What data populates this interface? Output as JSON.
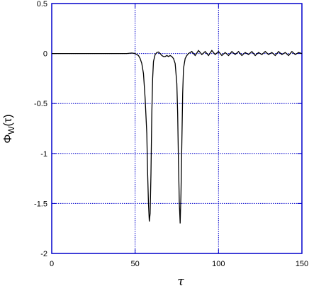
{
  "chart_data": {
    "type": "line",
    "xlabel": "τ",
    "ylabel": {
      "main": "Φ",
      "sub": "W",
      "rest": "(τ)"
    },
    "xlim": [
      0,
      150
    ],
    "ylim": [
      -2,
      0.5
    ],
    "xticks": [
      0,
      50,
      100,
      150
    ],
    "yticks": [
      0.5,
      0,
      -0.5,
      -1,
      -1.5,
      -2
    ],
    "grid": true,
    "series": [
      {
        "color": "#000000",
        "x": [
          0,
          10,
          20,
          30,
          40,
          45,
          48,
          50,
          51,
          52,
          53,
          54,
          55,
          56,
          57,
          57.5,
          58,
          58.5,
          59,
          59.5,
          60,
          60.5,
          61,
          62,
          63,
          64,
          65,
          66,
          67,
          68,
          69,
          70,
          71,
          72,
          73,
          74,
          75,
          75.5,
          76,
          76.5,
          77,
          77.5,
          78,
          78.5,
          79,
          80,
          81,
          82,
          84,
          86,
          88,
          90,
          92,
          94,
          96,
          98,
          100,
          102,
          104,
          106,
          108,
          110,
          112,
          114,
          116,
          118,
          120,
          122,
          124,
          126,
          128,
          130,
          132,
          134,
          136,
          138,
          140,
          142,
          144,
          146,
          148,
          150
        ],
        "values": [
          0,
          0,
          0,
          0,
          0,
          0,
          0.005,
          0,
          -0.01,
          -0.02,
          -0.05,
          -0.1,
          -0.2,
          -0.45,
          -0.8,
          -1.2,
          -1.5,
          -1.68,
          -1.6,
          -1.2,
          -0.6,
          -0.25,
          -0.08,
          -0.01,
          0.01,
          0.015,
          0,
          -0.02,
          -0.03,
          -0.03,
          -0.02,
          -0.03,
          -0.02,
          -0.03,
          -0.05,
          -0.1,
          -0.3,
          -0.6,
          -1.1,
          -1.5,
          -1.7,
          -1.4,
          -0.9,
          -0.4,
          -0.15,
          -0.05,
          -0.02,
          0,
          0.02,
          -0.02,
          0.03,
          -0.01,
          0.02,
          -0.02,
          0.03,
          -0.01,
          0.02,
          -0.02,
          0.01,
          -0.02,
          0.02,
          -0.01,
          0.02,
          -0.02,
          0.01,
          -0.01,
          0.02,
          -0.02,
          0.01,
          -0.01,
          0.02,
          -0.01,
          0.01,
          -0.02,
          0.02,
          -0.01,
          0.01,
          -0.02,
          0.02,
          -0.01,
          0.01,
          0
        ]
      }
    ]
  }
}
